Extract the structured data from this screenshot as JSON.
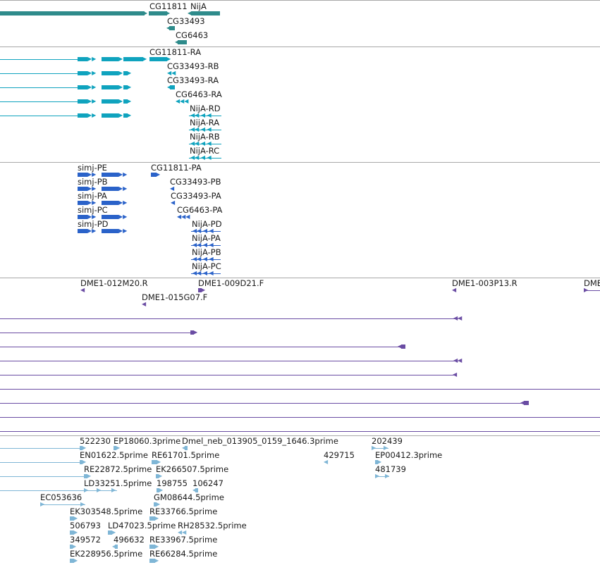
{
  "colors": {
    "gene": "#2e8b8b",
    "mrna": "#0fa3be",
    "protein": "#2a62c9",
    "clone": "#6a4ca3",
    "est": "#7fb6d6",
    "separator": "#a8a8a8"
  },
  "tracks": {
    "genes": {
      "labels": [
        "CG11811",
        "NijA",
        "CG33493",
        "CG6463"
      ]
    },
    "transcripts": {
      "labels": [
        "CG11811-RA",
        "CG33493-RB",
        "CG33493-RA",
        "CG6463-RA",
        "NijA-RD",
        "NijA-RA",
        "NijA-RB",
        "NijA-RC"
      ]
    },
    "proteins": {
      "labels": [
        "simj-PE",
        "simj-PB",
        "simj-PA",
        "simj-PC",
        "simj-PD",
        "CG11811-PA",
        "CG33493-PB",
        "CG33493-PA",
        "CG6463-PA",
        "NijA-PD",
        "NijA-PA",
        "NijA-PB",
        "NijA-PC"
      ]
    },
    "clones": {
      "labels": [
        "DME1-012M20.R",
        "DME1-009D21.F",
        "DME1-003P13.R",
        "DME",
        "DME1-015G07.F"
      ]
    },
    "ests": {
      "labels": [
        "522230",
        "EP18060.3prime",
        "Dmel_neb_013905_0159_1646.3prime",
        "202439",
        "EN01622.5prime",
        "RE61701.5prime",
        "429715",
        "EP00412.3prime",
        "RE22872.5prime",
        "EK266507.5prime",
        "481739",
        "LD33251.5prime",
        "198755",
        "106247",
        "EC053636",
        "GM08644.5prime",
        "EK303548.5prime",
        "RE33766.5prime",
        "506793",
        "LD47023.5prime",
        "RH28532.5prime",
        "349572",
        "496632",
        "RE33967.5prime",
        "EK228956.5prime",
        "RE66284.5prime"
      ]
    }
  }
}
